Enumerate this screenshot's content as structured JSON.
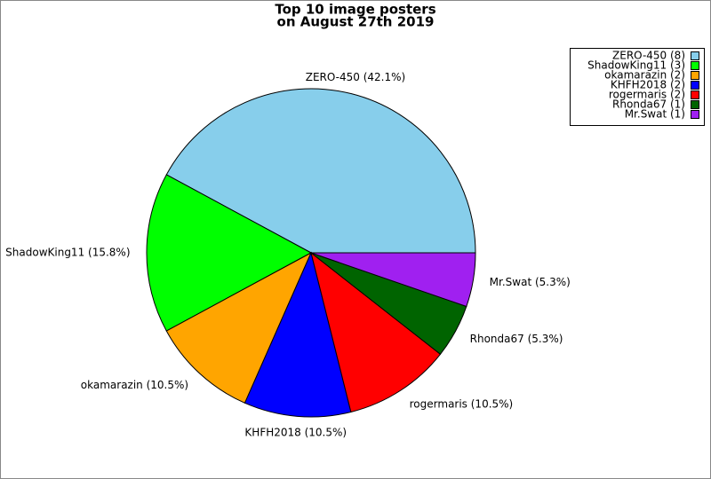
{
  "chart_data": {
    "type": "pie",
    "title": [
      "Top 10 image posters",
      "on August 27th 2019"
    ],
    "categories": [
      "ZERO-450",
      "ShadowKing11",
      "okamarazin",
      "KHFH2018",
      "rogermaris",
      "Rhonda67",
      "Mr.Swat"
    ],
    "values": [
      42.1,
      15.8,
      10.5,
      10.5,
      10.5,
      5.3,
      5.3
    ],
    "value_labels": [
      "ZERO-450 (42.1%)",
      "ShadowKing11 (15.8%)",
      "okamarazin (10.5%)",
      "KHFH2018 (10.5%)",
      "rogermaris (10.5%)",
      "Rhonda67 (5.3%)",
      "Mr.Swat (5.3%)"
    ],
    "legend_labels": [
      "ZERO-450 (8)",
      "ShadowKing11 (3)",
      "okamarazin (2)",
      "KHFH2018 (2)",
      "rogermaris (2)",
      "Rhonda67 (1)",
      "Mr.Swat (1)"
    ],
    "colors": [
      "#87ceeb",
      "#00ff00",
      "#ffa500",
      "#0000ff",
      "#ff0000",
      "#006400",
      "#a020f0"
    ],
    "legend": "upper right"
  }
}
